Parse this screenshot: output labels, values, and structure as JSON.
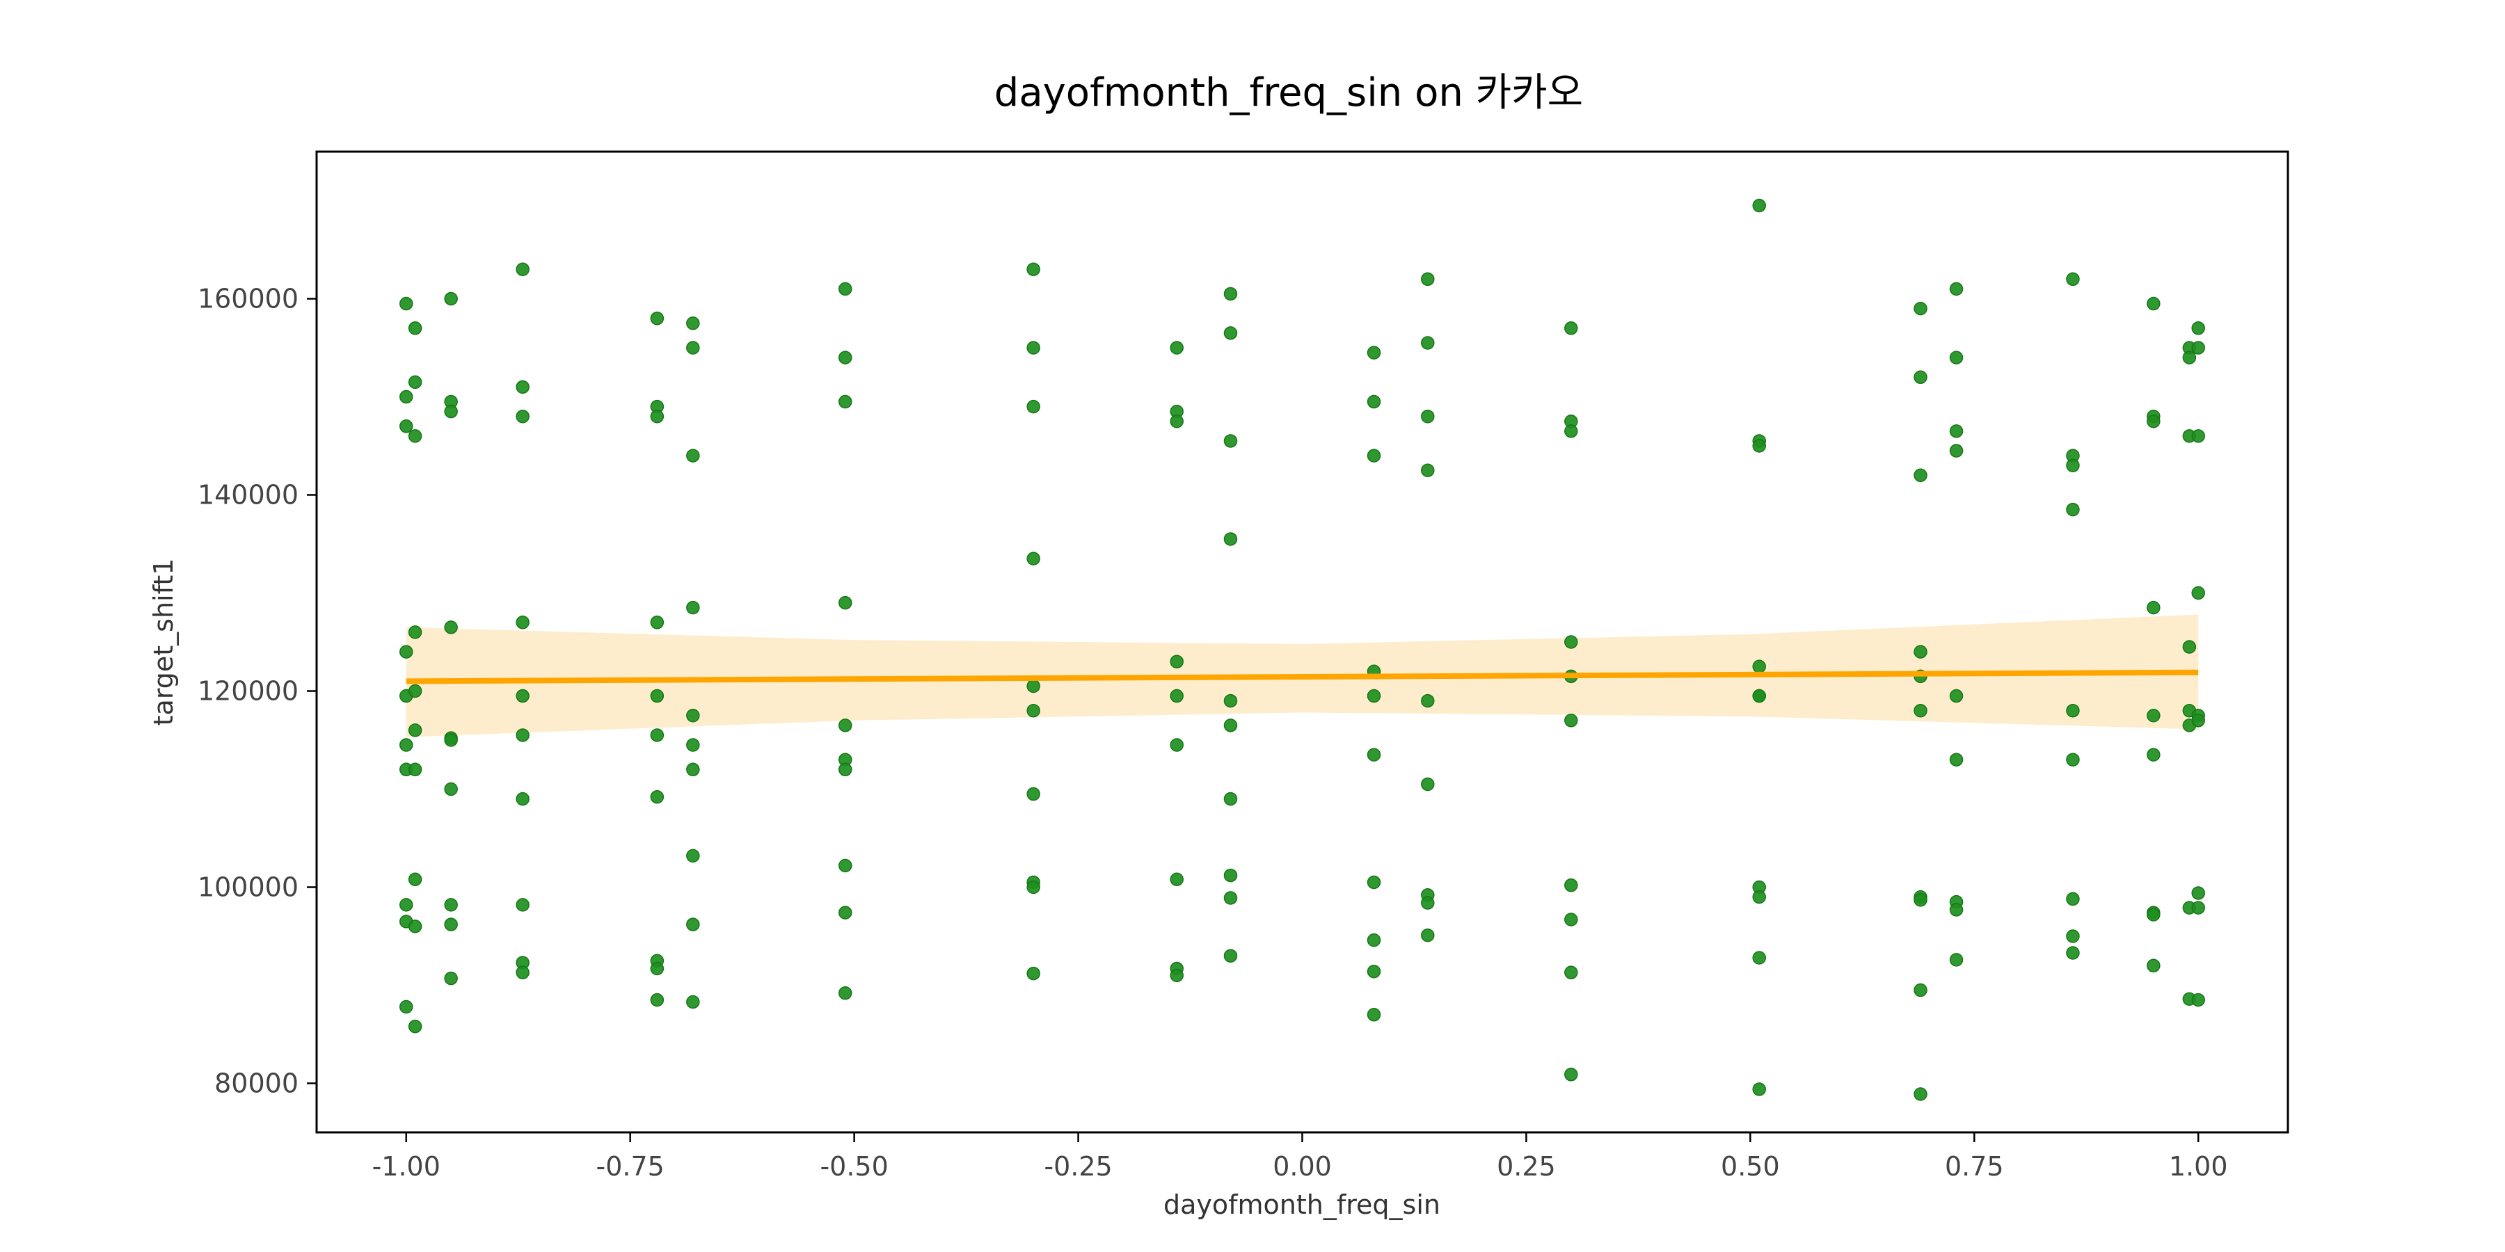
{
  "chart_data": {
    "type": "scatter",
    "title": "dayofmonth_freq_sin on 카카오",
    "xlabel": "dayofmonth_freq_sin",
    "ylabel": "target_shift1",
    "xlim": [
      -1.1,
      1.1
    ],
    "ylim": [
      75000,
      175000
    ],
    "xticks": [
      -1.0,
      -0.75,
      -0.5,
      -0.25,
      0.0,
      0.25,
      0.5,
      0.75,
      1.0
    ],
    "xtick_labels": [
      "-1.00",
      "-0.75",
      "-0.50",
      "-0.25",
      "0.00",
      "0.25",
      "0.50",
      "0.75",
      "1.00"
    ],
    "yticks": [
      80000,
      100000,
      120000,
      140000,
      160000
    ],
    "ytick_labels": [
      "80000",
      "100000",
      "120000",
      "140000",
      "160000"
    ],
    "grid": false,
    "colors": {
      "points": "#1e8f1e",
      "regression": "#ffa500",
      "confidence_band": "#fdebc8"
    },
    "regression": {
      "x": [
        -1.0,
        1.0
      ],
      "y": [
        121000,
        121900
      ]
    },
    "confidence_band": {
      "x": [
        -1.0,
        -0.5,
        0.0,
        0.5,
        1.0
      ],
      "upper": [
        126500,
        125200,
        124800,
        125800,
        127800
      ],
      "lower": [
        115300,
        117000,
        117800,
        117400,
        116100
      ]
    },
    "points": [
      {
        "x": -1.0,
        "y": 159500
      },
      {
        "x": -0.99,
        "y": 157000
      },
      {
        "x": -0.99,
        "y": 151500
      },
      {
        "x": -1.0,
        "y": 150000
      },
      {
        "x": -1.0,
        "y": 147000
      },
      {
        "x": -0.99,
        "y": 146000
      },
      {
        "x": -0.99,
        "y": 126000
      },
      {
        "x": -1.0,
        "y": 124000
      },
      {
        "x": -1.0,
        "y": 119500
      },
      {
        "x": -0.99,
        "y": 120000
      },
      {
        "x": -0.99,
        "y": 116000
      },
      {
        "x": -1.0,
        "y": 114500
      },
      {
        "x": -1.0,
        "y": 112000
      },
      {
        "x": -0.99,
        "y": 112000
      },
      {
        "x": -0.99,
        "y": 100800
      },
      {
        "x": -1.0,
        "y": 98200
      },
      {
        "x": -1.0,
        "y": 96500
      },
      {
        "x": -0.99,
        "y": 96000
      },
      {
        "x": -1.0,
        "y": 87800
      },
      {
        "x": -0.99,
        "y": 85800
      },
      {
        "x": -0.95,
        "y": 160000
      },
      {
        "x": -0.95,
        "y": 149500
      },
      {
        "x": -0.95,
        "y": 148500
      },
      {
        "x": -0.95,
        "y": 126500
      },
      {
        "x": -0.95,
        "y": 115200
      },
      {
        "x": -0.95,
        "y": 115000
      },
      {
        "x": -0.95,
        "y": 110000
      },
      {
        "x": -0.95,
        "y": 98200
      },
      {
        "x": -0.95,
        "y": 96200
      },
      {
        "x": -0.95,
        "y": 90700
      },
      {
        "x": -0.87,
        "y": 163000
      },
      {
        "x": -0.87,
        "y": 151000
      },
      {
        "x": -0.87,
        "y": 148000
      },
      {
        "x": -0.87,
        "y": 127000
      },
      {
        "x": -0.87,
        "y": 119500
      },
      {
        "x": -0.87,
        "y": 115500
      },
      {
        "x": -0.87,
        "y": 109000
      },
      {
        "x": -0.87,
        "y": 98200
      },
      {
        "x": -0.87,
        "y": 92300
      },
      {
        "x": -0.87,
        "y": 91300
      },
      {
        "x": -0.72,
        "y": 158000
      },
      {
        "x": -0.72,
        "y": 149000
      },
      {
        "x": -0.72,
        "y": 148000
      },
      {
        "x": -0.72,
        "y": 127000
      },
      {
        "x": -0.72,
        "y": 119500
      },
      {
        "x": -0.72,
        "y": 115500
      },
      {
        "x": -0.72,
        "y": 109200
      },
      {
        "x": -0.72,
        "y": 92500
      },
      {
        "x": -0.72,
        "y": 91700
      },
      {
        "x": -0.72,
        "y": 88500
      },
      {
        "x": -0.68,
        "y": 157500
      },
      {
        "x": -0.68,
        "y": 155000
      },
      {
        "x": -0.68,
        "y": 144000
      },
      {
        "x": -0.68,
        "y": 128500
      },
      {
        "x": -0.68,
        "y": 117500
      },
      {
        "x": -0.68,
        "y": 114500
      },
      {
        "x": -0.68,
        "y": 112000
      },
      {
        "x": -0.68,
        "y": 103200
      },
      {
        "x": -0.68,
        "y": 96200
      },
      {
        "x": -0.68,
        "y": 88300
      },
      {
        "x": -0.51,
        "y": 161000
      },
      {
        "x": -0.51,
        "y": 154000
      },
      {
        "x": -0.51,
        "y": 149500
      },
      {
        "x": -0.51,
        "y": 129000
      },
      {
        "x": -0.51,
        "y": 116500
      },
      {
        "x": -0.51,
        "y": 113000
      },
      {
        "x": -0.51,
        "y": 112000
      },
      {
        "x": -0.51,
        "y": 102200
      },
      {
        "x": -0.51,
        "y": 97400
      },
      {
        "x": -0.51,
        "y": 89200
      },
      {
        "x": -0.3,
        "y": 163000
      },
      {
        "x": -0.3,
        "y": 155000
      },
      {
        "x": -0.3,
        "y": 149000
      },
      {
        "x": -0.3,
        "y": 133500
      },
      {
        "x": -0.3,
        "y": 120500
      },
      {
        "x": -0.3,
        "y": 118000
      },
      {
        "x": -0.3,
        "y": 109500
      },
      {
        "x": -0.3,
        "y": 100500
      },
      {
        "x": -0.3,
        "y": 100000
      },
      {
        "x": -0.3,
        "y": 91200
      },
      {
        "x": -0.14,
        "y": 155000
      },
      {
        "x": -0.14,
        "y": 148500
      },
      {
        "x": -0.14,
        "y": 147500
      },
      {
        "x": -0.14,
        "y": 123000
      },
      {
        "x": -0.14,
        "y": 119500
      },
      {
        "x": -0.14,
        "y": 114500
      },
      {
        "x": -0.14,
        "y": 100800
      },
      {
        "x": -0.14,
        "y": 91700
      },
      {
        "x": -0.14,
        "y": 91000
      },
      {
        "x": -0.08,
        "y": 160500
      },
      {
        "x": -0.08,
        "y": 156500
      },
      {
        "x": -0.08,
        "y": 145500
      },
      {
        "x": -0.08,
        "y": 135500
      },
      {
        "x": -0.08,
        "y": 119000
      },
      {
        "x": -0.08,
        "y": 116500
      },
      {
        "x": -0.08,
        "y": 109000
      },
      {
        "x": -0.08,
        "y": 101200
      },
      {
        "x": -0.08,
        "y": 98900
      },
      {
        "x": -0.08,
        "y": 93000
      },
      {
        "x": 0.08,
        "y": 154500
      },
      {
        "x": 0.08,
        "y": 149500
      },
      {
        "x": 0.08,
        "y": 144000
      },
      {
        "x": 0.08,
        "y": 122000
      },
      {
        "x": 0.08,
        "y": 119500
      },
      {
        "x": 0.08,
        "y": 113500
      },
      {
        "x": 0.08,
        "y": 100500
      },
      {
        "x": 0.08,
        "y": 94600
      },
      {
        "x": 0.08,
        "y": 91400
      },
      {
        "x": 0.08,
        "y": 87000
      },
      {
        "x": 0.14,
        "y": 162000
      },
      {
        "x": 0.14,
        "y": 155500
      },
      {
        "x": 0.14,
        "y": 148000
      },
      {
        "x": 0.14,
        "y": 142500
      },
      {
        "x": 0.14,
        "y": 119000
      },
      {
        "x": 0.14,
        "y": 110500
      },
      {
        "x": 0.14,
        "y": 99200
      },
      {
        "x": 0.14,
        "y": 98400
      },
      {
        "x": 0.14,
        "y": 95100
      },
      {
        "x": 0.3,
        "y": 157000
      },
      {
        "x": 0.3,
        "y": 147500
      },
      {
        "x": 0.3,
        "y": 146500
      },
      {
        "x": 0.3,
        "y": 125000
      },
      {
        "x": 0.3,
        "y": 121500
      },
      {
        "x": 0.3,
        "y": 117000
      },
      {
        "x": 0.3,
        "y": 100200
      },
      {
        "x": 0.3,
        "y": 96700
      },
      {
        "x": 0.3,
        "y": 91300
      },
      {
        "x": 0.3,
        "y": 80900
      },
      {
        "x": 0.51,
        "y": 169500
      },
      {
        "x": 0.51,
        "y": 145500
      },
      {
        "x": 0.51,
        "y": 145000
      },
      {
        "x": 0.51,
        "y": 122500
      },
      {
        "x": 0.51,
        "y": 119500
      },
      {
        "x": 0.51,
        "y": 119500
      },
      {
        "x": 0.51,
        "y": 100000
      },
      {
        "x": 0.51,
        "y": 99000
      },
      {
        "x": 0.51,
        "y": 92800
      },
      {
        "x": 0.51,
        "y": 79400
      },
      {
        "x": 0.69,
        "y": 159000
      },
      {
        "x": 0.69,
        "y": 152000
      },
      {
        "x": 0.69,
        "y": 142000
      },
      {
        "x": 0.69,
        "y": 124000
      },
      {
        "x": 0.69,
        "y": 121500
      },
      {
        "x": 0.69,
        "y": 118000
      },
      {
        "x": 0.69,
        "y": 99000
      },
      {
        "x": 0.69,
        "y": 98700
      },
      {
        "x": 0.69,
        "y": 89500
      },
      {
        "x": 0.69,
        "y": 78900
      },
      {
        "x": 0.73,
        "y": 161000
      },
      {
        "x": 0.73,
        "y": 154000
      },
      {
        "x": 0.73,
        "y": 146500
      },
      {
        "x": 0.73,
        "y": 144500
      },
      {
        "x": 0.73,
        "y": 119500
      },
      {
        "x": 0.73,
        "y": 113000
      },
      {
        "x": 0.73,
        "y": 98500
      },
      {
        "x": 0.73,
        "y": 97700
      },
      {
        "x": 0.73,
        "y": 92600
      },
      {
        "x": 0.86,
        "y": 162000
      },
      {
        "x": 0.86,
        "y": 144000
      },
      {
        "x": 0.86,
        "y": 143000
      },
      {
        "x": 0.86,
        "y": 138500
      },
      {
        "x": 0.86,
        "y": 118000
      },
      {
        "x": 0.86,
        "y": 113000
      },
      {
        "x": 0.86,
        "y": 98800
      },
      {
        "x": 0.86,
        "y": 95000
      },
      {
        "x": 0.86,
        "y": 93300
      },
      {
        "x": 0.95,
        "y": 159500
      },
      {
        "x": 0.95,
        "y": 148000
      },
      {
        "x": 0.95,
        "y": 147500
      },
      {
        "x": 0.95,
        "y": 128500
      },
      {
        "x": 0.95,
        "y": 117500
      },
      {
        "x": 0.95,
        "y": 113500
      },
      {
        "x": 0.95,
        "y": 97400
      },
      {
        "x": 0.95,
        "y": 97200
      },
      {
        "x": 0.95,
        "y": 92000
      },
      {
        "x": 0.99,
        "y": 155000
      },
      {
        "x": 0.99,
        "y": 154000
      },
      {
        "x": 0.99,
        "y": 146000
      },
      {
        "x": 0.99,
        "y": 124500
      },
      {
        "x": 0.99,
        "y": 118000
      },
      {
        "x": 0.99,
        "y": 116500
      },
      {
        "x": 0.99,
        "y": 97900
      },
      {
        "x": 0.99,
        "y": 88600
      },
      {
        "x": 1.0,
        "y": 157000
      },
      {
        "x": 1.0,
        "y": 155000
      },
      {
        "x": 1.0,
        "y": 146000
      },
      {
        "x": 1.0,
        "y": 130000
      },
      {
        "x": 1.0,
        "y": 117500
      },
      {
        "x": 1.0,
        "y": 117000
      },
      {
        "x": 1.0,
        "y": 99400
      },
      {
        "x": 1.0,
        "y": 97900
      },
      {
        "x": 1.0,
        "y": 88500
      }
    ]
  }
}
